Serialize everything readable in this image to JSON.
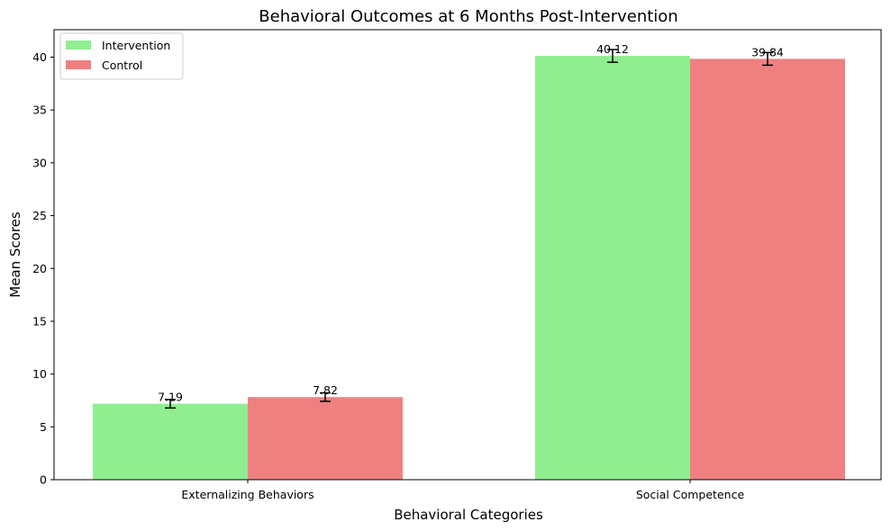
{
  "chart_data": {
    "type": "bar",
    "title": "Behavioral Outcomes at 6 Months Post-Intervention",
    "xlabel": "Behavioral Categories",
    "ylabel": "Mean Scores",
    "categories": [
      "Externalizing Behaviors",
      "Social Competence"
    ],
    "series": [
      {
        "name": "Intervention",
        "values": [
          7.19,
          40.12
        ],
        "errors": [
          0.4,
          0.6
        ],
        "labels": [
          "7.19",
          "40.12"
        ],
        "color": "#90ee90"
      },
      {
        "name": "Control",
        "values": [
          7.82,
          39.84
        ],
        "errors": [
          0.4,
          0.6
        ],
        "labels": [
          "7.82",
          "39.84"
        ],
        "color": "#f08080"
      }
    ],
    "ylim": [
      0,
      42.6
    ],
    "yticks": [
      0,
      5,
      10,
      15,
      20,
      25,
      30,
      35,
      40
    ],
    "ytick_labels": [
      "0",
      "5",
      "10",
      "15",
      "20",
      "25",
      "30",
      "35",
      "40"
    ],
    "grid": false,
    "legend_position": "top-left"
  }
}
